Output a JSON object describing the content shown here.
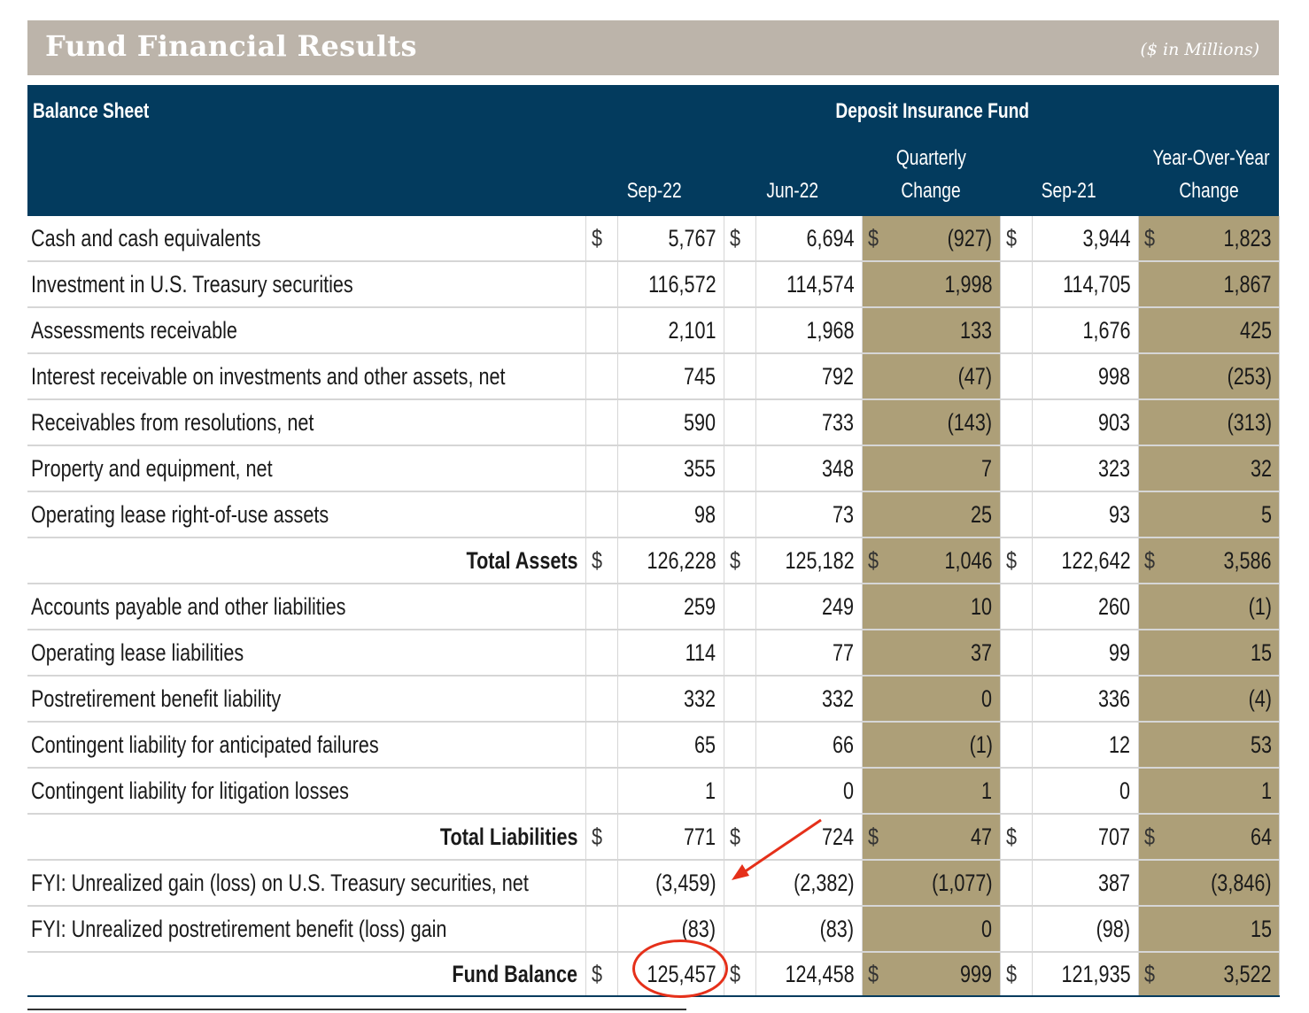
{
  "header": {
    "title": "Fund Financial Results",
    "units": "($ in Millions)"
  },
  "table": {
    "section_label": "Balance Sheet",
    "group_label": "Deposit Insurance Fund",
    "columns": {
      "sep22": "Sep-22",
      "jun22": "Jun-22",
      "qchange_top": "Quarterly",
      "qchange_bottom": "Change",
      "sep21": "Sep-21",
      "yoy_top": "Year-Over-Year",
      "yoy_bottom": "Change"
    },
    "currency_symbol": "$",
    "rows": [
      {
        "label": "Cash and cash equivalents",
        "total": false,
        "dollar": true,
        "sep22": "5,767",
        "jun22": "6,694",
        "qchange": "(927)",
        "sep21": "3,944",
        "yoy": "1,823"
      },
      {
        "label": "Investment in U.S. Treasury securities",
        "total": false,
        "dollar": false,
        "sep22": "116,572",
        "jun22": "114,574",
        "qchange": "1,998",
        "sep21": "114,705",
        "yoy": "1,867"
      },
      {
        "label": "Assessments receivable",
        "total": false,
        "dollar": false,
        "sep22": "2,101",
        "jun22": "1,968",
        "qchange": "133",
        "sep21": "1,676",
        "yoy": "425"
      },
      {
        "label": "Interest receivable on investments and other assets, net",
        "total": false,
        "dollar": false,
        "sep22": "745",
        "jun22": "792",
        "qchange": "(47)",
        "sep21": "998",
        "yoy": "(253)"
      },
      {
        "label": "Receivables from resolutions, net",
        "total": false,
        "dollar": false,
        "sep22": "590",
        "jun22": "733",
        "qchange": "(143)",
        "sep21": "903",
        "yoy": "(313)"
      },
      {
        "label": "Property and equipment, net",
        "total": false,
        "dollar": false,
        "sep22": "355",
        "jun22": "348",
        "qchange": "7",
        "sep21": "323",
        "yoy": "32"
      },
      {
        "label": "Operating lease right-of-use assets",
        "total": false,
        "dollar": false,
        "sep22": "98",
        "jun22": "73",
        "qchange": "25",
        "sep21": "93",
        "yoy": "5"
      },
      {
        "label": "Total Assets",
        "total": true,
        "dollar": true,
        "sep22": "126,228",
        "jun22": "125,182",
        "qchange": "1,046",
        "sep21": "122,642",
        "yoy": "3,586"
      },
      {
        "label": "Accounts payable and other liabilities",
        "total": false,
        "dollar": false,
        "sep22": "259",
        "jun22": "249",
        "qchange": "10",
        "sep21": "260",
        "yoy": "(1)"
      },
      {
        "label": "Operating lease liabilities",
        "total": false,
        "dollar": false,
        "sep22": "114",
        "jun22": "77",
        "qchange": "37",
        "sep21": "99",
        "yoy": "15"
      },
      {
        "label": "Postretirement benefit liability",
        "total": false,
        "dollar": false,
        "sep22": "332",
        "jun22": "332",
        "qchange": "0",
        "sep21": "336",
        "yoy": "(4)"
      },
      {
        "label": "Contingent liability for anticipated failures",
        "total": false,
        "dollar": false,
        "sep22": "65",
        "jun22": "66",
        "qchange": "(1)",
        "sep21": "12",
        "yoy": "53"
      },
      {
        "label": "Contingent liability for litigation losses",
        "total": false,
        "dollar": false,
        "sep22": "1",
        "jun22": "0",
        "qchange": "1",
        "sep21": "0",
        "yoy": "1"
      },
      {
        "label": "Total Liabilities",
        "total": true,
        "dollar": true,
        "sep22": "771",
        "jun22": "724",
        "qchange": "47",
        "sep21": "707",
        "yoy": "64"
      },
      {
        "label": "FYI: Unrealized gain (loss) on U.S. Treasury securities, net",
        "total": false,
        "dollar": false,
        "sep22": "(3,459)",
        "jun22": "(2,382)",
        "qchange": "(1,077)",
        "sep21": "387",
        "yoy": "(3,846)"
      },
      {
        "label": "FYI: Unrealized postretirement benefit (loss) gain",
        "total": false,
        "dollar": false,
        "sep22": "(83)",
        "jun22": "(83)",
        "qchange": "0",
        "sep21": "(98)",
        "yoy": "15"
      },
      {
        "label": "Fund Balance",
        "total": true,
        "dollar": true,
        "sep22": "125,457",
        "jun22": "124,458",
        "qchange": "999",
        "sep21": "121,935",
        "yoy": "3,522"
      }
    ]
  },
  "annotations": {
    "highlight_color": "#e5301a",
    "header_color": "#033b5e",
    "change_column_color": "#ad9f78"
  }
}
